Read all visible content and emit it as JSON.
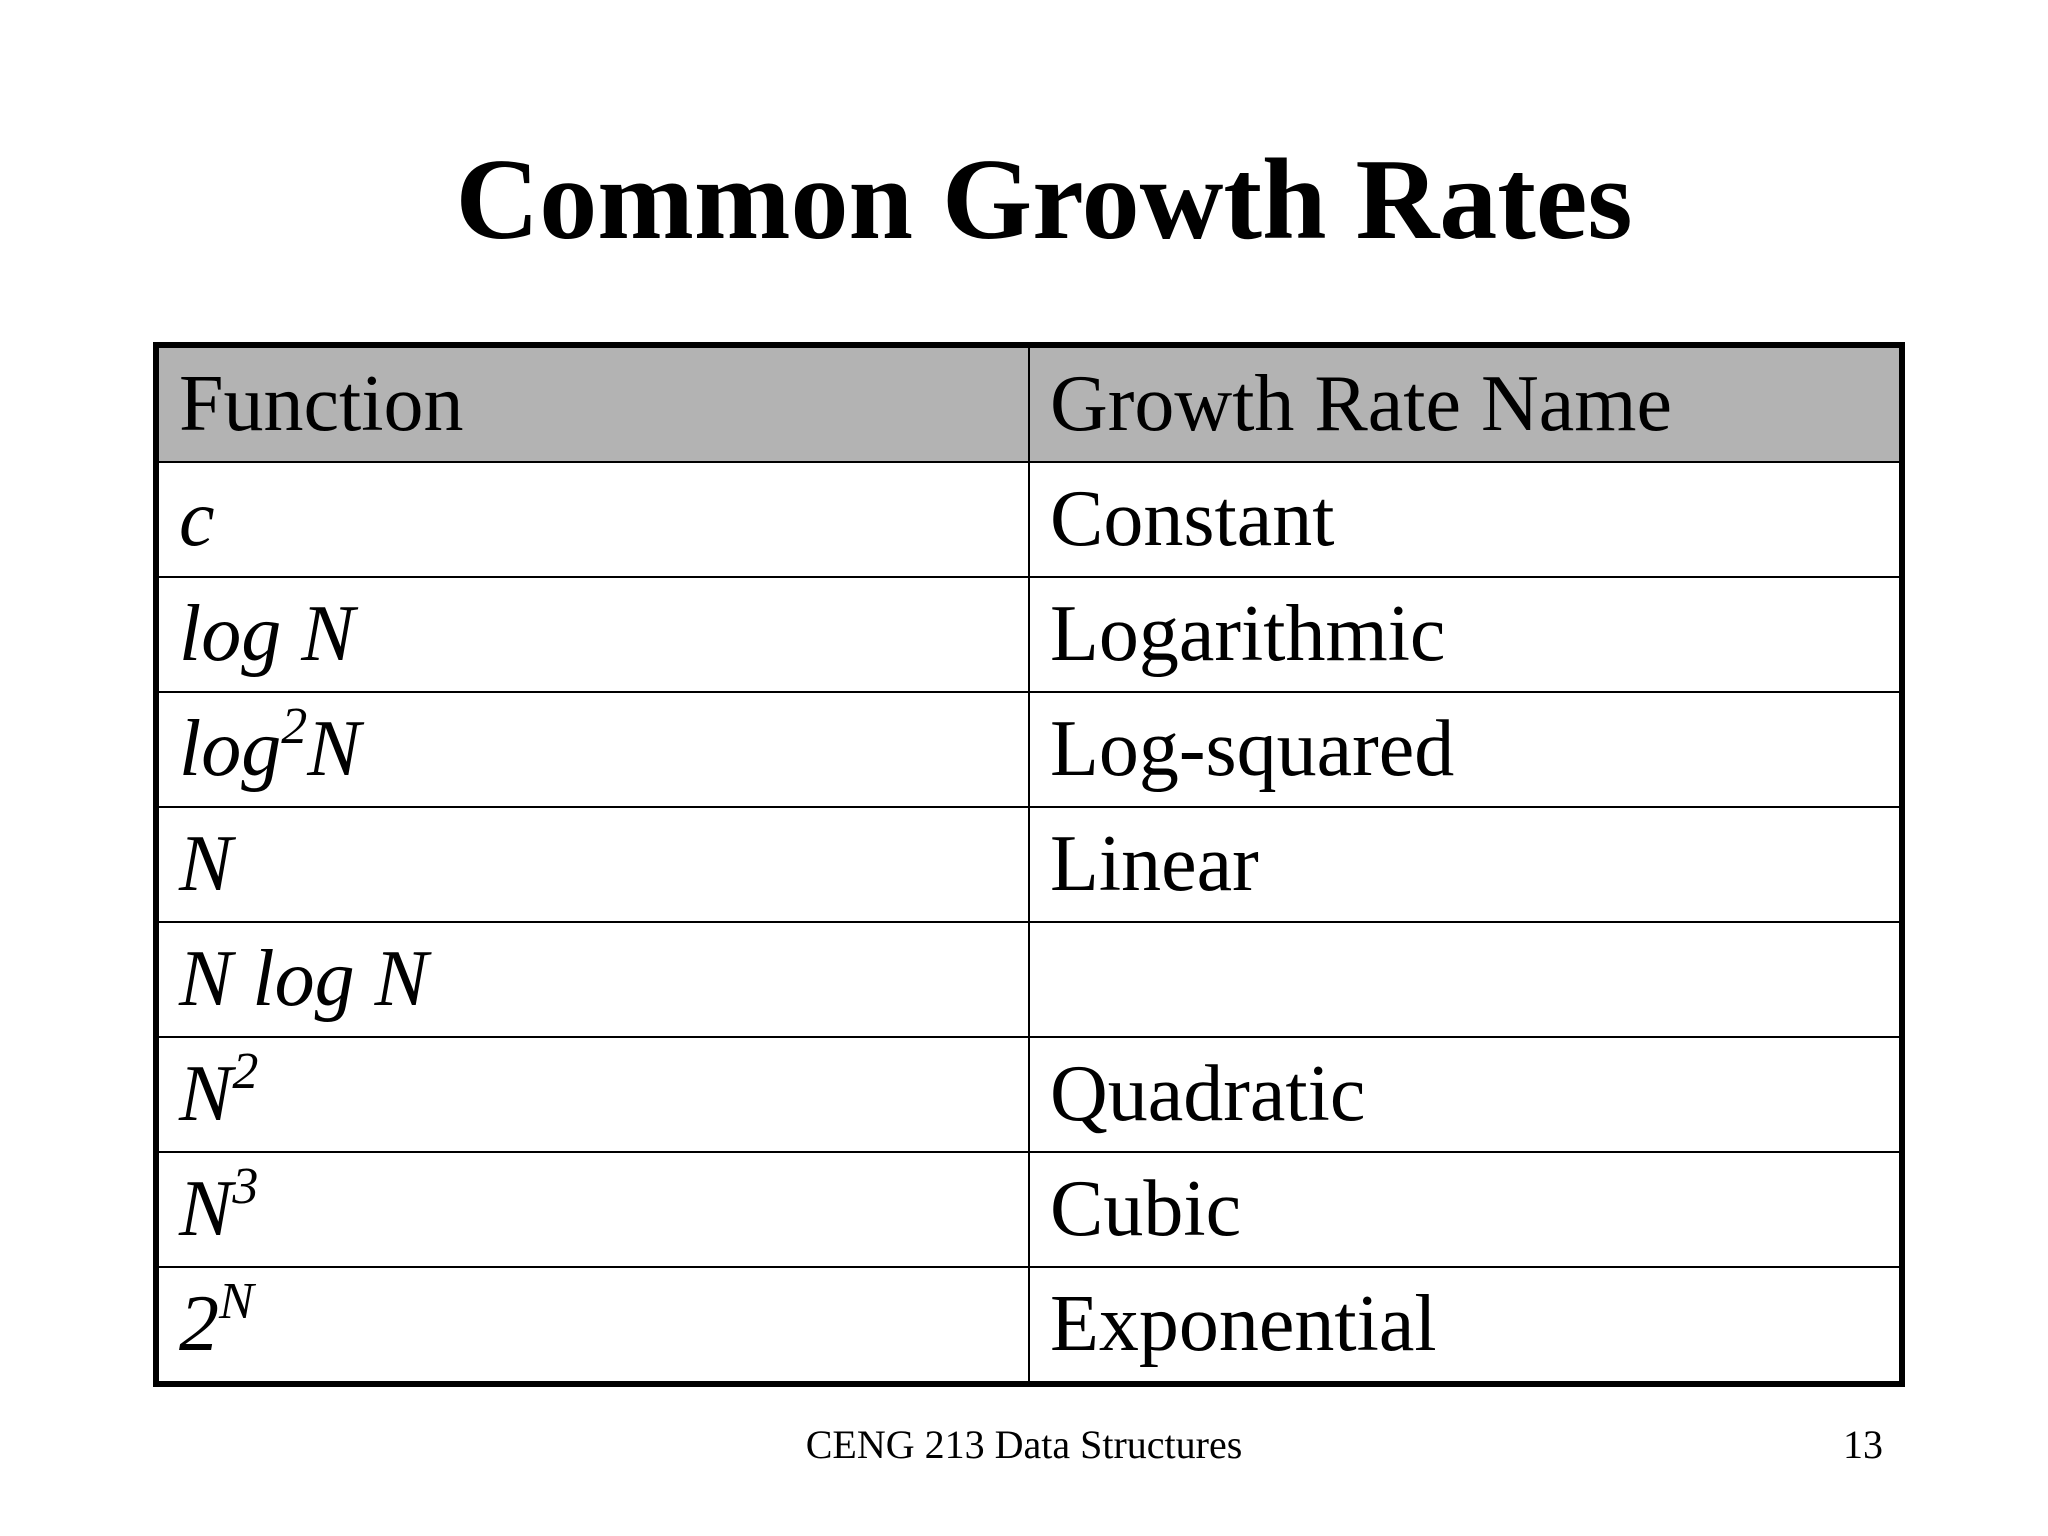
{
  "title": "Common Growth Rates",
  "table": {
    "headers": [
      "Function",
      "Growth Rate Name"
    ],
    "rows": [
      {
        "function": {
          "base": "c",
          "exp": "",
          "rest": ""
        },
        "name": "Constant"
      },
      {
        "function": {
          "base": "log N",
          "exp": "",
          "rest": ""
        },
        "name": "Logarithmic"
      },
      {
        "function": {
          "base": "log",
          "exp": "2",
          "rest": "N"
        },
        "name": "Log-squared"
      },
      {
        "function": {
          "base": "N",
          "exp": "",
          "rest": ""
        },
        "name": "Linear"
      },
      {
        "function": {
          "base": "N log N",
          "exp": "",
          "rest": ""
        },
        "name": ""
      },
      {
        "function": {
          "base": "N",
          "exp": "2",
          "rest": ""
        },
        "name": "Quadratic"
      },
      {
        "function": {
          "base": "N",
          "exp": "3",
          "rest": ""
        },
        "name": "Cubic"
      },
      {
        "function": {
          "base": "2",
          "exp": "N",
          "rest": ""
        },
        "name": "Exponential"
      }
    ]
  },
  "footer": {
    "course": "CENG 213 Data Structures",
    "page": "13"
  },
  "colors": {
    "header_background": "#b3b3b3",
    "border": "#000000",
    "text": "#000000"
  }
}
